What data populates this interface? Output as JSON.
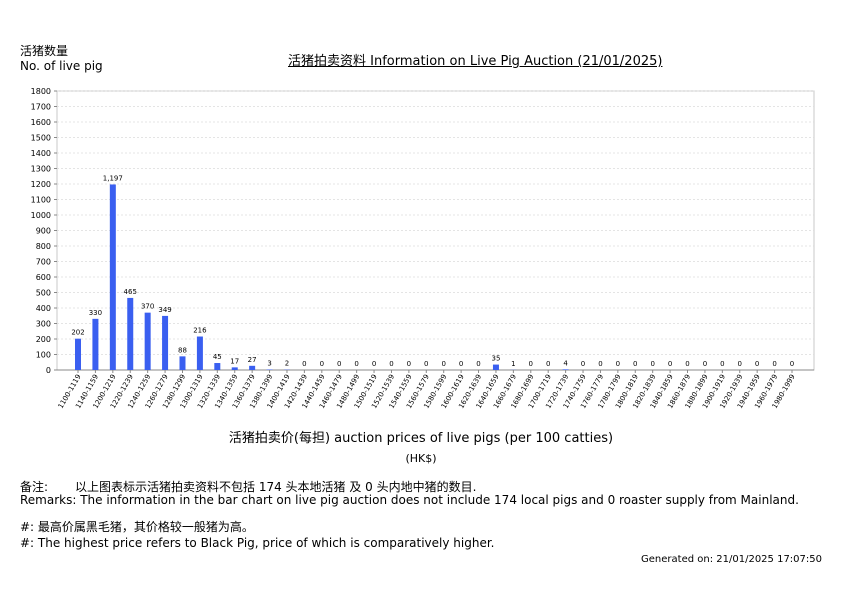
{
  "header": {
    "ylabel_cn": "活猪数量",
    "ylabel_en": "No. of live pig",
    "title": "活猪拍卖资料 Information on Live Pig Auction (21/01/2025)"
  },
  "axis": {
    "xlabel": "活猪拍卖价(每担) auction prices of live pigs (per 100 catties)",
    "xunit": "(HK$)"
  },
  "remarks": {
    "cn_label": "备注:",
    "cn": "以上图表标示活猪拍卖资料不包括 174 头本地活猪 及 0 头内地中猪的数目.",
    "en": "Remarks: The information in the bar chart on live pig auction does not include 174 local pigs and 0 roaster supply from Mainland.",
    "note_cn": "#: 最高价属黑毛猪，其价格较一般猪为高。",
    "note_en": "#: The highest price refers to Black Pig, price of which is comparatively higher.",
    "generated": "Generated on: 21/01/2025 17:07:50"
  },
  "chart_data": {
    "type": "bar",
    "bar_color": "#3a5ff0",
    "grid": true,
    "ylim": [
      0,
      1800
    ],
    "yticks": [
      0,
      100,
      200,
      300,
      400,
      500,
      600,
      700,
      800,
      900,
      1000,
      1100,
      1200,
      1300,
      1400,
      1500,
      1600,
      1700,
      1800
    ],
    "categories": [
      "1100-1119",
      "1140-1159",
      "1200-1219",
      "1220-1239",
      "1240-1259",
      "1260-1279",
      "1280-1299",
      "1300-1319",
      "1320-1339",
      "1340-1359",
      "1360-1379",
      "1380-1399",
      "1400-1419",
      "1420-1439",
      "1440-1459",
      "1460-1479",
      "1480-1499",
      "1500-1519",
      "1520-1539",
      "1540-1559",
      "1560-1579",
      "1580-1599",
      "1600-1619",
      "1620-1639",
      "1640-1659",
      "1660-1679",
      "1680-1699",
      "1700-1719",
      "1720-1739",
      "1740-1759",
      "1760-1779",
      "1780-1799",
      "1800-1819",
      "1820-1839",
      "1840-1859",
      "1860-1879",
      "1880-1899",
      "1900-1919",
      "1920-1939",
      "1940-1959",
      "1960-1979",
      "1980-1999"
    ],
    "values": [
      202,
      330,
      1197,
      465,
      370,
      349,
      88,
      216,
      45,
      17,
      27,
      3,
      2,
      0,
      0,
      0,
      0,
      0,
      0,
      0,
      0,
      0,
      0,
      0,
      35,
      1,
      0,
      0,
      4,
      0,
      0,
      0,
      0,
      0,
      0,
      0,
      0,
      0,
      0,
      0,
      0,
      0
    ],
    "value_labels": [
      "202",
      "330",
      "1,197",
      "465",
      "370",
      "349",
      "88",
      "216",
      "45",
      "17",
      "27",
      "3",
      "2",
      "0",
      "0",
      "0",
      "0",
      "0",
      "0",
      "0",
      "0",
      "0",
      "0",
      "0",
      "35",
      "1",
      "0",
      "0",
      "4",
      "0",
      "0",
      "0",
      "0",
      "0",
      "0",
      "0",
      "0",
      "0",
      "0",
      "0",
      "0",
      "0"
    ]
  }
}
